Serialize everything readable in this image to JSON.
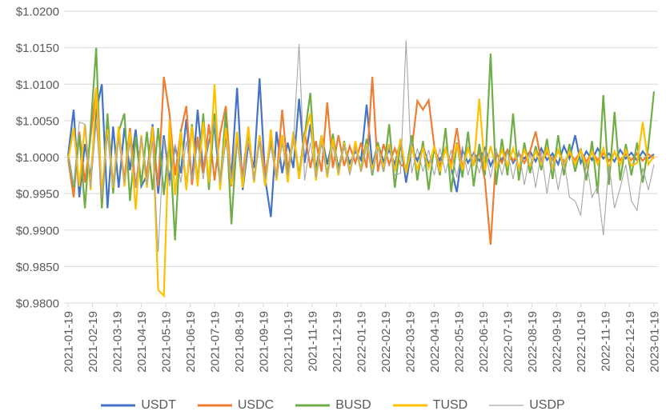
{
  "chart_data": {
    "type": "line",
    "title": "",
    "xlabel": "",
    "ylabel": "",
    "grid": "horizontal",
    "grid_color": "#d9d9d9",
    "axis_text_color": "#595959",
    "legend_position": "bottom",
    "y_axis": {
      "min": 0.98,
      "max": 1.02,
      "step": 0.005,
      "format": "$0.0000",
      "tick_labels": [
        "$1.0200",
        "$1.0150",
        "$1.0100",
        "$1.0050",
        "$1.0000",
        "$0.9950",
        "$0.9900",
        "$0.9850",
        "$0.9800"
      ]
    },
    "x_axis": {
      "sampling": "weekly points between monthly ticks",
      "tick_labels": [
        "2021-01-19",
        "2021-02-19",
        "2021-03-19",
        "2021-04-19",
        "2021-05-19",
        "2021-06-19",
        "2021-07-19",
        "2021-08-19",
        "2021-09-19",
        "2021-10-19",
        "2021-11-19",
        "2021-12-19",
        "2022-01-19",
        "2022-02-19",
        "2022-03-19",
        "2022-04-19",
        "2022-05-19",
        "2022-06-19",
        "2022-07-19",
        "2022-08-19",
        "2022-09-19",
        "2022-10-19",
        "2022-11-19",
        "2022-12-19",
        "2023-01-19"
      ]
    },
    "series": [
      {
        "name": "USDT",
        "color": "#4472c4",
        "width": 2.2,
        "values": [
          1.0002,
          1.0065,
          0.9945,
          1.0018,
          0.9972,
          1.0062,
          1.01,
          0.993,
          1.0042,
          0.9958,
          1.004,
          0.9982,
          1.0038,
          0.996,
          0.9975,
          1.0045,
          0.995,
          1.003,
          0.9968,
          1.0015,
          0.9978,
          1.0052,
          0.9965,
          1.0065,
          0.998,
          1.0022,
          1.004,
          0.9962,
          1.003,
          0.9975,
          1.0095,
          0.9955,
          1.0018,
          0.9985,
          1.0108,
          0.997,
          0.9918,
          1.0035,
          0.9978,
          1.002,
          0.9985,
          1.008,
          0.9992,
          1.0045,
          0.9982,
          1.003,
          0.999,
          1.0025,
          0.9985,
          1.0015,
          0.9992,
          1.0008,
          0.9996,
          1.0072,
          0.9988,
          1.0018,
          0.9994,
          1.001,
          0.999,
          1.0022,
          0.9965,
          1.0012,
          0.9995,
          1.0015,
          0.999,
          1.0008,
          0.9996,
          1.0012,
          0.9985,
          0.9952,
          1.001,
          0.9992,
          1.0006,
          0.9995,
          1.0012,
          0.9988,
          1.0005,
          0.9996,
          1.001,
          0.9992,
          1.0004,
          0.9998,
          1.0008,
          0.9994,
          1.0012,
          0.9996,
          1.0005,
          0.999,
          1.0015,
          0.9998,
          1.003,
          0.9992,
          1.0008,
          0.9996,
          1.0012,
          0.9998,
          1.0005,
          0.9994,
          1.001,
          0.9998,
          1.0006,
          0.9995,
          1.0008,
          0.9998,
          1.0004
        ]
      },
      {
        "name": "USDC",
        "color": "#ed7d31",
        "width": 2.2,
        "values": [
          0.9998,
          0.9945,
          1.0035,
          0.9965,
          1.0028,
          1.0095,
          0.993,
          1.0048,
          0.9962,
          1.003,
          0.997,
          1.004,
          0.9958,
          1.0025,
          0.9972,
          1.0038,
          0.996,
          1.011,
          1.006,
          0.9975,
          1.0035,
          1.007,
          0.9962,
          1.0028,
          0.9978,
          1.0045,
          0.9968,
          1.0032,
          1.007,
          0.996,
          1.0025,
          0.9975,
          1.004,
          0.9968,
          1.003,
          0.9978,
          1.002,
          0.997,
          1.0065,
          0.9982,
          1.0028,
          0.9975,
          1.0035,
          0.9985,
          1.0022,
          0.998,
          1.0075,
          0.9985,
          1.003,
          0.9988,
          1.0015,
          0.9992,
          1.002,
          0.9985,
          1.011,
          0.998,
          1.0018,
          0.999,
          1.0012,
          0.999,
          0.9985,
          1.001,
          1.0077,
          1.0065,
          1.0078,
          1.0015,
          0.9988,
          1.001,
          0.9992,
          1.004,
          0.9985,
          1.0012,
          0.999,
          1.0008,
          0.9968,
          0.988,
          1.0005,
          0.9992,
          1.001,
          0.9995,
          1.0006,
          0.9992,
          1.0008,
          1.0035,
          0.9994,
          1.0006,
          0.9996,
          1.0008,
          0.9992,
          1.0005,
          0.9996,
          1.0008,
          0.9994,
          1.0006,
          0.9996,
          1.0005,
          0.9995,
          1.0006,
          0.9996,
          1.0004,
          0.9996,
          1.0005,
          0.9995,
          1.0004,
          0.9998
        ]
      },
      {
        "name": "BUSD",
        "color": "#70ad47",
        "width": 2.2,
        "values": [
          1.0005,
          0.9958,
          1.003,
          0.993,
          1.004,
          1.015,
          0.993,
          1.006,
          0.995,
          1.0035,
          1.006,
          0.994,
          1.0028,
          0.9962,
          1.0035,
          0.9955,
          1.004,
          0.9948,
          1.0025,
          0.9886,
          1.0038,
          0.9958,
          1.0045,
          0.9965,
          1.006,
          0.9955,
          1.006,
          0.9962,
          1.0062,
          0.9908,
          1.003,
          0.9958,
          1.0035,
          0.9968,
          1.0025,
          0.996,
          1.0032,
          0.997,
          1.0028,
          0.9972,
          1.0035,
          0.9975,
          1.003,
          1.0088,
          0.997,
          1.0028,
          0.9975,
          1.0032,
          0.9978,
          1.0022,
          0.998,
          1.0018,
          0.9982,
          1.0025,
          0.9975,
          1.002,
          0.998,
          1.0045,
          0.9958,
          1.0018,
          0.998,
          1.003,
          0.9968,
          1.0022,
          0.9955,
          1.0015,
          0.9975,
          1.004,
          0.9952,
          1.002,
          0.9972,
          1.0035,
          0.996,
          1.0018,
          0.9975,
          1.0142,
          0.9962,
          1.0025,
          0.9975,
          1.006,
          0.9968,
          1.002,
          0.9978,
          1.0015,
          0.9982,
          1.0025,
          0.997,
          1.003,
          0.9975,
          1.0018,
          0.998,
          1.0012,
          0.9968,
          1.0022,
          0.995,
          1.0085,
          0.9962,
          1.0062,
          0.9968,
          1.0018,
          0.9975,
          1.002,
          0.9965,
          1.0015,
          1.009
        ]
      },
      {
        "name": "TUSD",
        "color": "#ffc000",
        "width": 2.2,
        "values": [
          0.9995,
          1.004,
          0.996,
          1.0045,
          0.9955,
          1.0095,
          0.995,
          1.0038,
          0.9958,
          1.0042,
          0.996,
          1.0035,
          0.9928,
          1.003,
          0.9958,
          1.0042,
          0.9818,
          0.981,
          1.005,
          0.9948,
          1.0035,
          0.9955,
          1.0042,
          0.996,
          1.0048,
          0.9965,
          1.01,
          0.9955,
          1.004,
          0.9962,
          1.0035,
          0.9958,
          1.0042,
          0.9965,
          1.003,
          0.996,
          1.0038,
          0.9968,
          1.003,
          0.9965,
          1.0035,
          0.997,
          1.0028,
          1.006,
          0.9968,
          1.003,
          0.9972,
          1.0025,
          0.9975,
          1.002,
          0.9978,
          1.0022,
          0.998,
          1.0018,
          0.9982,
          1.0015,
          0.9985,
          1.0018,
          0.998,
          1.0025,
          0.9978,
          1.0015,
          0.9982,
          1.0012,
          0.9985,
          1.0015,
          0.998,
          1.0012,
          0.9985,
          1.0018,
          0.9982,
          1.0012,
          0.9988,
          1.008,
          0.9982,
          1.0015,
          0.9985,
          1.001,
          0.9988,
          1.0012,
          0.9985,
          1.001,
          0.9988,
          1.0008,
          0.999,
          1.0012,
          0.9986,
          1.001,
          0.9988,
          1.0008,
          0.999,
          1.001,
          0.9986,
          1.0008,
          0.999,
          1.0012,
          0.9985,
          1.0008,
          0.999,
          1.001,
          0.9988,
          0.9992,
          1.0048,
          0.999,
          1.0002
        ]
      },
      {
        "name": "USDP",
        "color": "#a6a6a6",
        "width": 1.1,
        "values": [
          1.0,
          0.9962,
          1.0048,
          1.0045,
          0.9958,
          1.0048,
          0.9945,
          1.003,
          0.996,
          1.0025,
          0.9965,
          1.002,
          0.9958,
          1.0028,
          0.9962,
          1.0022,
          0.987,
          1.0025,
          0.996,
          1.0018,
          0.9965,
          1.0022,
          0.9968,
          1.0018,
          0.997,
          1.0025,
          1.005,
          0.9965,
          1.002,
          0.997,
          1.0018,
          0.9972,
          1.002,
          0.9968,
          1.0022,
          0.997,
          1.0015,
          0.9972,
          1.0018,
          0.9975,
          1.002,
          1.0155,
          0.9968,
          1.002,
          0.9972,
          1.0018,
          0.9975,
          1.0015,
          0.9978,
          1.0018,
          0.9975,
          1.0012,
          0.998,
          1.0015,
          0.9978,
          1.0012,
          0.998,
          1.0015,
          0.9975,
          0.9978,
          1.016,
          0.9978,
          1.0012,
          0.998,
          1.001,
          0.9975,
          1.0012,
          0.9978,
          1.001,
          0.9972,
          1.0015,
          0.9975,
          1.0008,
          0.9978,
          1.001,
          0.9972,
          1.0012,
          0.9975,
          1.0008,
          0.997,
          1.001,
          0.9962,
          1.0005,
          0.9958,
          1.0008,
          0.995,
          1.0002,
          0.9955,
          0.9998,
          0.9945,
          0.994,
          0.992,
          0.9995,
          0.9945,
          0.996,
          0.9893,
          0.999,
          0.993,
          0.9958,
          0.999,
          0.994,
          0.9927,
          0.9985,
          0.9955,
          0.999
        ]
      }
    ]
  }
}
